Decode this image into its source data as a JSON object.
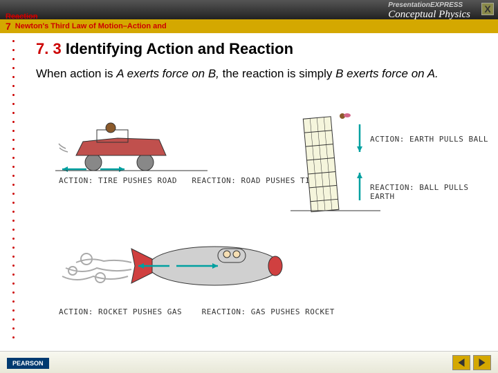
{
  "topbar": {
    "presentation_brand": "PresentationEXPRESS",
    "book_title": "Conceptual Physics",
    "close": "X"
  },
  "header": {
    "chapter_num": "7",
    "chapter_title": "Newton's Third Law of Motion–Action and",
    "chapter_overflow": "Reaction"
  },
  "section": {
    "num": "7. 3",
    "title": "Identifying Action and Reaction",
    "body_pre": "When action is ",
    "body_em1": "A exerts force on B,",
    "body_mid": " the reaction is simply ",
    "body_em2": "B exerts force on A.",
    "body_post": ""
  },
  "captions": {
    "car_action": "ACTION: TIRE PUSHES ROAD",
    "car_reaction": "REACTION: ROAD PUSHES TIRE",
    "tower_action": "ACTION: EARTH PULLS BALL",
    "tower_reaction": "REACTION: BALL PULLS EARTH",
    "rocket_action": "ACTION: ROCKET PUSHES GAS",
    "rocket_reaction": "REACTION: GAS PUSHES ROCKET"
  },
  "footer": {
    "publisher": "PEARSON"
  },
  "colors": {
    "accent": "#c00",
    "yellow": "#d4a800",
    "topbar": "#333",
    "pearson": "#003a70"
  }
}
